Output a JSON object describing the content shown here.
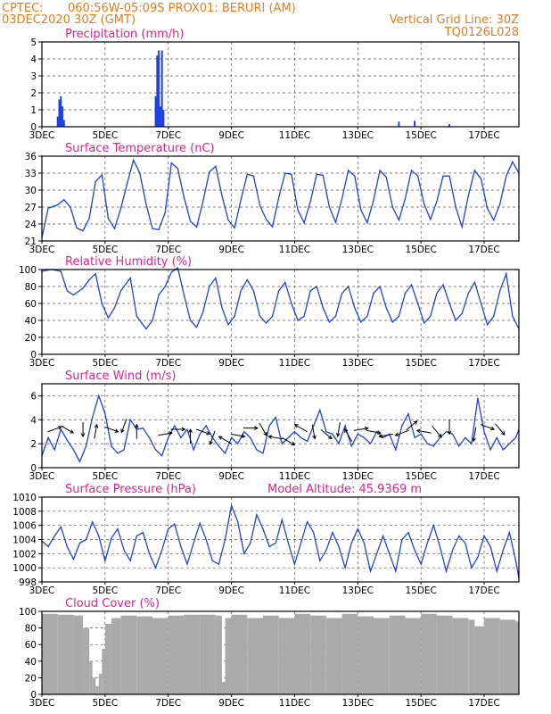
{
  "header": {
    "source": "CPTEC:",
    "location": "060:56W-05:09S   PROX01: BERURI (AM)",
    "run": "03DEC2020 30Z (GMT)",
    "gridline": "Vertical Grid Line: 30Z",
    "code": "TQ0126L028"
  },
  "colors": {
    "header": "#e87a1a",
    "titles": "#e0218a",
    "series": "#2040e0",
    "cloud": "#aaaaaa",
    "arrows": "#000000"
  },
  "chart_data": [
    {
      "type": "bar",
      "title": "Precipitation (mm/h)",
      "x_ticks": [
        "3DEC",
        "5DEC",
        "7DEC",
        "9DEC",
        "11DEC",
        "13DEC",
        "15DEC",
        "17DEC"
      ],
      "x_range_days": [
        3,
        18.1
      ],
      "ylim": [
        0,
        5
      ],
      "y_ticks": [
        0,
        1,
        2,
        3,
        4,
        5
      ],
      "x": [
        3.5,
        3.55,
        3.6,
        3.65,
        3.7,
        6.6,
        6.65,
        6.7,
        6.75,
        6.8,
        6.85,
        14.3,
        14.8,
        15.9
      ],
      "values": [
        0.6,
        1.6,
        1.8,
        1.2,
        0.4,
        1.8,
        4.2,
        4.5,
        1.2,
        4.5,
        1.0,
        0.3,
        0.35,
        0.15
      ]
    },
    {
      "type": "line",
      "title": "Surface Temperature (nC)",
      "x_ticks": [
        "3DEC",
        "5DEC",
        "7DEC",
        "9DEC",
        "11DEC",
        "13DEC",
        "15DEC",
        "17DEC"
      ],
      "ylim": [
        21,
        36
      ],
      "y_ticks": [
        21,
        24,
        27,
        30,
        33,
        36
      ],
      "x": [
        3.0,
        3.2,
        3.5,
        3.7,
        3.9,
        4.1,
        4.3,
        4.5,
        4.7,
        4.9,
        5.1,
        5.3,
        5.5,
        5.7,
        5.9,
        6.1,
        6.3,
        6.5,
        6.7,
        6.9,
        7.1,
        7.3,
        7.5,
        7.7,
        7.9,
        8.1,
        8.3,
        8.5,
        8.7,
        8.9,
        9.1,
        9.3,
        9.5,
        9.7,
        9.9,
        10.1,
        10.3,
        10.5,
        10.7,
        10.9,
        11.1,
        11.3,
        11.5,
        11.7,
        11.9,
        12.1,
        12.3,
        12.5,
        12.7,
        12.9,
        13.1,
        13.3,
        13.5,
        13.7,
        13.9,
        14.1,
        14.3,
        14.5,
        14.7,
        14.9,
        15.1,
        15.3,
        15.5,
        15.7,
        15.9,
        16.1,
        16.3,
        16.5,
        16.7,
        16.9,
        17.1,
        17.3,
        17.5,
        17.7,
        17.9,
        18.1
      ],
      "values": [
        21.6,
        26.8,
        27.4,
        28.3,
        27.0,
        23.3,
        22.8,
        25.0,
        31.5,
        32.7,
        25.0,
        23.2,
        26.8,
        31.2,
        35.3,
        33.0,
        27.5,
        23.2,
        23.0,
        26.0,
        34.8,
        33.8,
        28.7,
        24.5,
        23.5,
        28.0,
        33.2,
        34.2,
        29.0,
        24.7,
        23.3,
        28.3,
        32.8,
        32.5,
        27.3,
        24.8,
        23.5,
        28.7,
        33.0,
        32.8,
        26.5,
        24.2,
        28.0,
        32.8,
        32.6,
        27.0,
        24.3,
        28.5,
        33.5,
        32.5,
        26.5,
        24.2,
        28.2,
        33.5,
        32.3,
        27.0,
        24.7,
        28.5,
        33.5,
        32.5,
        27.5,
        24.8,
        28.0,
        32.5,
        32.5,
        27.0,
        23.5,
        29.0,
        33.5,
        32.0,
        26.8,
        24.7,
        27.5,
        32.5,
        35.0,
        33.0
      ],
      "vertical_grid": true
    },
    {
      "type": "line",
      "title": "Relative Humidity (%)",
      "x_ticks": [
        "3DEC",
        "5DEC",
        "7DEC",
        "9DEC",
        "11DEC",
        "13DEC",
        "15DEC",
        "17DEC"
      ],
      "ylim": [
        0,
        100
      ],
      "y_ticks": [
        0,
        20,
        40,
        60,
        80,
        100
      ],
      "x": [
        3.0,
        3.3,
        3.6,
        3.8,
        4.0,
        4.3,
        4.5,
        4.7,
        4.9,
        5.1,
        5.3,
        5.5,
        5.8,
        6.0,
        6.3,
        6.5,
        6.7,
        6.9,
        7.1,
        7.3,
        7.5,
        7.7,
        7.9,
        8.1,
        8.3,
        8.5,
        8.7,
        8.9,
        9.1,
        9.3,
        9.5,
        9.7,
        9.9,
        10.1,
        10.3,
        10.5,
        10.7,
        10.9,
        11.1,
        11.3,
        11.5,
        11.7,
        11.9,
        12.1,
        12.3,
        12.5,
        12.7,
        12.9,
        13.1,
        13.3,
        13.5,
        13.7,
        13.9,
        14.1,
        14.3,
        14.5,
        14.7,
        14.9,
        15.1,
        15.3,
        15.5,
        15.7,
        15.9,
        16.1,
        16.3,
        16.5,
        16.7,
        16.9,
        17.1,
        17.3,
        17.5,
        17.7,
        17.9,
        18.1
      ],
      "values": [
        98,
        100,
        98,
        75,
        70,
        78,
        88,
        95,
        60,
        43,
        55,
        75,
        90,
        45,
        30,
        40,
        70,
        80,
        97,
        102,
        70,
        40,
        32,
        50,
        80,
        90,
        55,
        35,
        45,
        75,
        88,
        75,
        45,
        37,
        45,
        75,
        85,
        60,
        40,
        45,
        75,
        80,
        55,
        38,
        45,
        72,
        80,
        55,
        38,
        45,
        72,
        80,
        55,
        38,
        45,
        72,
        82,
        60,
        37,
        45,
        72,
        82,
        60,
        40,
        48,
        72,
        85,
        60,
        35,
        45,
        75,
        95,
        45,
        30
      ]
    },
    {
      "type": "line",
      "title": "Surface Wind (m/s)",
      "x_ticks": [
        "3DEC",
        "5DEC",
        "7DEC",
        "9DEC",
        "11DEC",
        "13DEC",
        "15DEC",
        "17DEC"
      ],
      "ylim": [
        0,
        7
      ],
      "y_ticks": [
        0,
        2,
        4,
        6
      ],
      "x": [
        3.0,
        3.2,
        3.4,
        3.6,
        3.8,
        4.0,
        4.2,
        4.4,
        4.6,
        4.8,
        5.0,
        5.2,
        5.4,
        5.6,
        5.8,
        6.0,
        6.2,
        6.4,
        6.6,
        6.8,
        7.0,
        7.2,
        7.4,
        7.6,
        7.8,
        8.0,
        8.2,
        8.4,
        8.6,
        8.8,
        9.0,
        9.2,
        9.4,
        9.6,
        9.8,
        10.0,
        10.2,
        10.4,
        10.6,
        10.8,
        11.0,
        11.2,
        11.4,
        11.6,
        11.8,
        12.0,
        12.2,
        12.4,
        12.6,
        12.8,
        13.0,
        13.2,
        13.4,
        13.6,
        13.8,
        14.0,
        14.2,
        14.4,
        14.6,
        14.8,
        15.0,
        15.2,
        15.4,
        15.6,
        15.8,
        16.0,
        16.2,
        16.4,
        16.6,
        16.8,
        17.0,
        17.2,
        17.4,
        17.6,
        17.8,
        18.0,
        18.1
      ],
      "values": [
        1.0,
        2.5,
        1.5,
        3.2,
        2.3,
        1.5,
        0.5,
        1.8,
        4.2,
        6.0,
        4.5,
        1.8,
        1.2,
        1.5,
        4.0,
        3.2,
        3.3,
        2.5,
        1.5,
        1.0,
        2.5,
        3.5,
        2.5,
        3.2,
        1.5,
        2.8,
        3.5,
        2.5,
        1.8,
        1.2,
        2.5,
        2.0,
        3.0,
        2.5,
        1.5,
        1.2,
        3.5,
        4.2,
        2.0,
        2.5,
        3.0,
        2.5,
        2.2,
        3.5,
        4.8,
        3.0,
        2.8,
        2.0,
        3.5,
        1.8,
        2.8,
        2.5,
        2.0,
        3.0,
        2.5,
        2.8,
        1.5,
        3.5,
        4.5,
        2.5,
        2.8,
        2.0,
        1.8,
        2.5,
        3.0,
        2.8,
        1.8,
        2.5,
        2.0,
        5.8,
        3.0,
        1.5,
        2.5,
        1.5,
        2.0,
        2.5,
        3.2
      ],
      "arrows": {
        "x": [
          3.4,
          3.8,
          4.3,
          4.7,
          5.2,
          5.6,
          6.0,
          6.9,
          7.3,
          7.7,
          8.1,
          8.4,
          8.8,
          9.2,
          9.6,
          10.0,
          10.4,
          10.8,
          11.2,
          11.6,
          12.0,
          12.4,
          12.7,
          13.1,
          13.5,
          13.9,
          14.4,
          14.7,
          15.1,
          15.5,
          15.9,
          16.7,
          17.1,
          17.5
        ],
        "level": [
          3.2,
          3.2,
          3.2,
          3.0,
          3.2,
          3.5,
          3.0,
          2.8,
          3.2,
          2.6,
          3.0,
          2.5,
          2.3,
          2.7,
          3.3,
          3.2,
          2.5,
          2.2,
          3.3,
          3.0,
          2.8,
          3.2,
          2.7,
          3.2,
          3.0,
          2.7,
          2.9,
          3.5,
          3.0,
          3.0,
          3.4,
          2.8,
          3.4,
          3.2
        ],
        "direction_deg": [
          20,
          -30,
          -90,
          80,
          -20,
          -110,
          90,
          10,
          0,
          90,
          -20,
          -110,
          150,
          -10,
          0,
          -60,
          170,
          -30,
          150,
          -80,
          -40,
          -100,
          120,
          10,
          -10,
          -170,
          -160,
          40,
          170,
          -50,
          -90,
          -100,
          -20,
          -50
        ]
      }
    },
    {
      "type": "line",
      "title": "Surface Pressure (hPa)",
      "subtitle": "Model Altitude: 45.9369 m",
      "x_ticks": [
        "3DEC",
        "5DEC",
        "7DEC",
        "9DEC",
        "11DEC",
        "13DEC",
        "15DEC",
        "17DEC"
      ],
      "ylim": [
        998,
        1010
      ],
      "y_ticks": [
        998,
        1000,
        1002,
        1004,
        1006,
        1008,
        1010
      ],
      "x": [
        3.0,
        3.2,
        3.4,
        3.6,
        3.8,
        4.0,
        4.2,
        4.4,
        4.6,
        4.8,
        5.0,
        5.2,
        5.4,
        5.6,
        5.8,
        6.0,
        6.2,
        6.4,
        6.6,
        6.8,
        7.0,
        7.2,
        7.4,
        7.6,
        7.8,
        8.0,
        8.2,
        8.4,
        8.6,
        8.8,
        9.0,
        9.2,
        9.4,
        9.6,
        9.8,
        10.0,
        10.2,
        10.4,
        10.6,
        10.8,
        11.0,
        11.2,
        11.4,
        11.6,
        11.8,
        12.0,
        12.2,
        12.4,
        12.6,
        12.8,
        13.0,
        13.2,
        13.4,
        13.6,
        13.8,
        14.0,
        14.2,
        14.4,
        14.6,
        14.8,
        15.0,
        15.2,
        15.4,
        15.6,
        15.8,
        16.0,
        16.2,
        16.4,
        16.6,
        16.8,
        17.0,
        17.2,
        17.4,
        17.6,
        17.8,
        18.0,
        18.1
      ],
      "values": [
        1003.8,
        1003.0,
        1004.5,
        1005.8,
        1003.0,
        1001.2,
        1003.5,
        1004.0,
        1006.5,
        1004.5,
        1001.0,
        1004.2,
        1005.5,
        1002.5,
        1001.0,
        1004.5,
        1005.0,
        1002.0,
        1000.0,
        1002.5,
        1005.5,
        1006.2,
        1003.0,
        1000.5,
        1003.5,
        1006.3,
        1004.0,
        1001.0,
        1000.5,
        1004.0,
        1008.8,
        1006.5,
        1002.0,
        1003.5,
        1007.5,
        1005.5,
        1003.0,
        1003.5,
        1006.8,
        1003.5,
        1000.5,
        1003.5,
        1006.5,
        1005.0,
        1001.0,
        1002.5,
        1005.0,
        1003.0,
        1000.0,
        1003.5,
        1005.5,
        1003.5,
        999.5,
        1002.0,
        1004.5,
        1002.0,
        999.5,
        1004.0,
        1005.0,
        1002.5,
        1000.5,
        1003.5,
        1006.0,
        1003.0,
        999.5,
        1002.5,
        1004.5,
        1003.5,
        1000.0,
        1001.5,
        1004.5,
        1003.0,
        999.5,
        1002.5,
        1005.0,
        1001.0,
        998.5
      ]
    },
    {
      "type": "bar",
      "title": "Cloud Cover (%)",
      "x_ticks": [
        "3DEC",
        "5DEC",
        "7DEC",
        "9DEC",
        "11DEC",
        "13DEC",
        "15DEC",
        "17DEC"
      ],
      "ylim": [
        0,
        100
      ],
      "y_ticks": [
        0,
        20,
        40,
        60,
        80,
        100
      ],
      "x": [
        3.0,
        3.5,
        4.0,
        4.3,
        4.5,
        4.6,
        4.7,
        4.8,
        4.9,
        5.0,
        5.2,
        5.5,
        6.0,
        6.5,
        7.0,
        7.5,
        8.0,
        8.5,
        8.7,
        8.8,
        9.0,
        9.5,
        10.0,
        10.5,
        11.0,
        11.5,
        12.0,
        12.5,
        13.0,
        13.5,
        14.0,
        14.5,
        15.0,
        15.5,
        16.0,
        16.5,
        16.7,
        17.0,
        17.5,
        18.0
      ],
      "values": [
        97,
        96,
        95,
        80,
        40,
        20,
        10,
        25,
        55,
        85,
        92,
        95,
        94,
        92,
        95,
        96,
        96,
        95,
        15,
        92,
        96,
        92,
        95,
        92,
        97,
        95,
        92,
        97,
        94,
        92,
        95,
        92,
        97,
        95,
        92,
        90,
        82,
        92,
        90,
        88
      ]
    }
  ]
}
